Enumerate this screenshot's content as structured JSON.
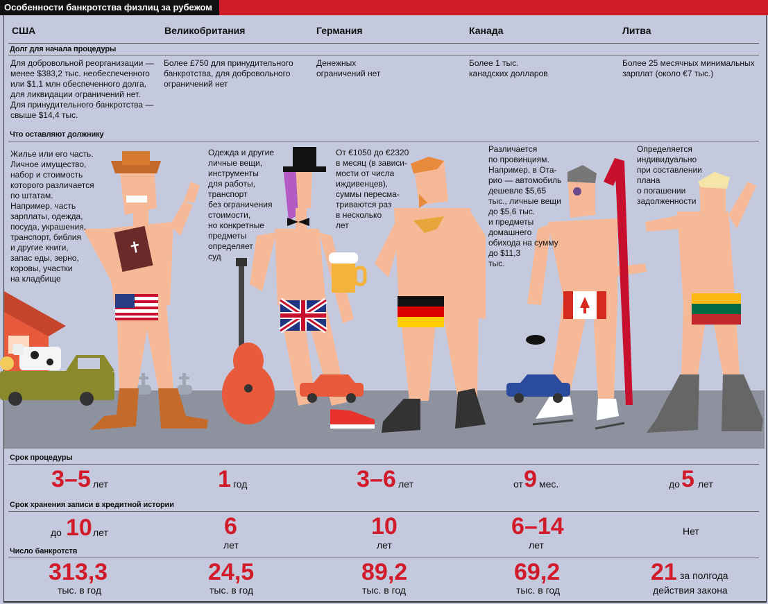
{
  "title": "Особенности банкротства физлиц за рубежом",
  "countries": [
    "США",
    "Великобритания",
    "Германия",
    "Канада",
    "Литва"
  ],
  "sections": {
    "debt": "Долг для начала процедуры",
    "keep": "Что оставляют должнику",
    "term": "Срок процедуры",
    "history": "Срок хранения записи в кредитной истории",
    "count": "Число банкротств"
  },
  "debt": [
    "Для добровольной реорганизации —\nменее $383,2 тыс. необеспеченного\nили $1,1 млн обеспеченного долга,\nдля ликвидации ограничений нет.\nДля принудительного банкротства —\nсвыше $14,4 тыс.",
    "Более £750 для принудительного\nбанкротства, для добровольного\nограничений нет",
    "Денежных\nограничений нет",
    "Более 1 тыс.\nканадских долларов",
    "Более 25 месячных минимальных\nзарплат (около €7 тыс.)"
  ],
  "keep": [
    "Жилье или его часть.\nЛичное имущество,\nнабор и стоимость\nкоторого различается\nпо штатам.\nНапример, часть\nзарплаты, одежда,\nпосуда, украшения,\nтранспорт, библия\nи другие книги,\nзапас еды, зерно,\nкоровы, участки\nна кладбище",
    "Одежда и другие\nличные вещи,\nинструменты\nдля работы,\nтранспорт\nбез ограничения\nстоимости,\nно конкретные\nпредметы\nопределяет\nсуд",
    "От €1050 до €2320\nв месяц (в зависи-\nмости от числа\nиждивенцев),\nсуммы пересма-\nтриваются раз\nв несколько\nлет",
    "Различается\nпо провинциям.\nНапример, в Ота-\nрио — автомобиль\nдешевле $5,65\nтыс., личные вещи\nдо $5,6 тыс.\nи предметы\nдомашнего\nобихода на сумму\nдо $11,3\nтыс.",
    "Определяется\nиндивидуально\nпри составлении\nплана\nо погашении\nзадолженности"
  ],
  "term": [
    {
      "pre": "",
      "num": "3–5",
      "post": "лет"
    },
    {
      "pre": "",
      "num": "1",
      "post": "год"
    },
    {
      "pre": "",
      "num": "3–6",
      "post": "лет"
    },
    {
      "pre": "от",
      "num": "9",
      "post": "мес."
    },
    {
      "pre": "до",
      "num": "5",
      "post": "лет"
    }
  ],
  "history": [
    {
      "pre": "до",
      "num": "10",
      "post": "лет"
    },
    {
      "num": "6",
      "under": "лет"
    },
    {
      "num": "10",
      "under": "лет"
    },
    {
      "num": "6–14",
      "under": "лет"
    },
    {
      "text": "Нет"
    }
  ],
  "count": [
    {
      "num": "313,3",
      "under": "тыс. в год"
    },
    {
      "num": "24,5",
      "under": "тыс. в год"
    },
    {
      "num": "89,2",
      "under": "тыс. в год"
    },
    {
      "num": "69,2",
      "under": "тыс. в год"
    },
    {
      "num": "21",
      "post": "за полгода",
      "under": "действия закона"
    }
  ],
  "colors": {
    "accent": "#d21b2a",
    "background": "#c5c9dd",
    "skin": "#f6b998",
    "ground": "#8d929e"
  }
}
